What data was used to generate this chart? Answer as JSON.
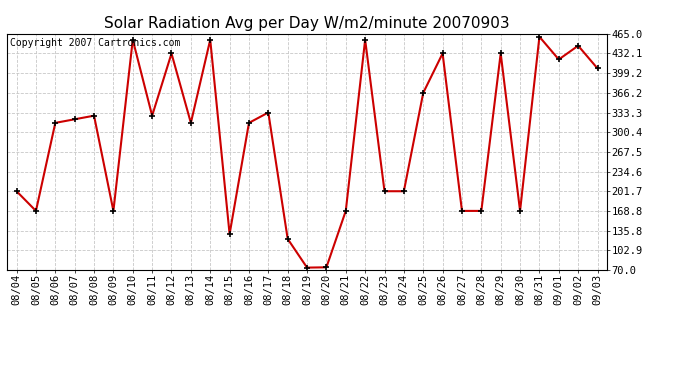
{
  "title": "Solar Radiation Avg per Day W/m2/minute 20070903",
  "copyright": "Copyright 2007 Cartronics.com",
  "dates": [
    "08/04",
    "08/05",
    "08/06",
    "08/07",
    "08/08",
    "08/09",
    "08/10",
    "08/11",
    "08/12",
    "08/13",
    "08/14",
    "08/15",
    "08/16",
    "08/17",
    "08/18",
    "08/19",
    "08/20",
    "08/21",
    "08/22",
    "08/23",
    "08/24",
    "08/25",
    "08/26",
    "08/27",
    "08/28",
    "08/29",
    "08/30",
    "08/31",
    "09/01",
    "09/02",
    "09/03"
  ],
  "values": [
    201.7,
    168.8,
    316.0,
    322.0,
    328.0,
    168.8,
    455.0,
    328.0,
    432.0,
    316.0,
    455.0,
    130.0,
    316.0,
    333.3,
    122.0,
    74.0,
    74.5,
    168.8,
    455.0,
    201.7,
    201.7,
    366.2,
    432.1,
    168.8,
    168.8,
    432.1,
    168.8,
    460.0,
    422.0,
    445.0,
    407.0
  ],
  "y_ticks": [
    70.0,
    102.9,
    135.8,
    168.8,
    201.7,
    234.6,
    267.5,
    300.4,
    333.3,
    366.2,
    399.2,
    432.1,
    465.0
  ],
  "line_color": "#cc0000",
  "marker": "+",
  "marker_color": "#000000",
  "bg_color": "#ffffff",
  "plot_bg_color": "#ffffff",
  "grid_color": "#c8c8c8",
  "title_fontsize": 11,
  "copyright_fontsize": 7,
  "tick_fontsize": 7.5,
  "ylim": [
    70.0,
    465.0
  ]
}
